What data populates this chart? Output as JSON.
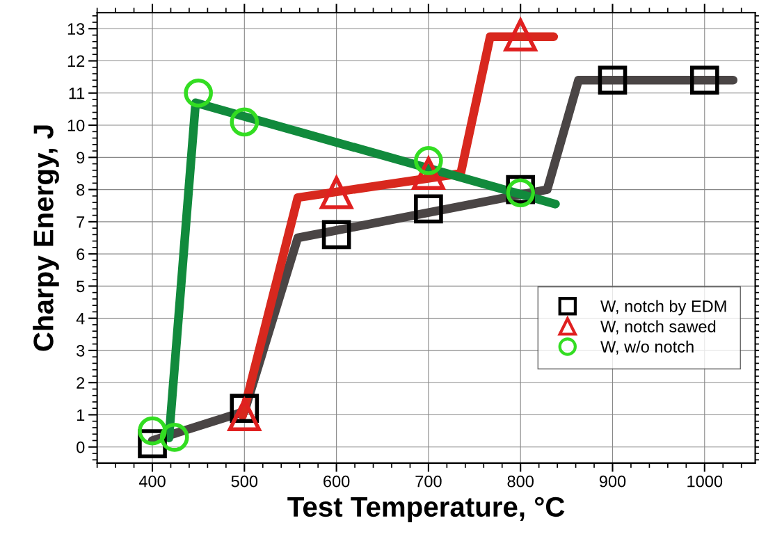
{
  "chart_data": {
    "type": "scatter",
    "xlabel": "Test Temperature, °C",
    "ylabel": "Charpy Energy, J",
    "xlim": [
      340,
      1055
    ],
    "ylim": [
      -0.5,
      13.5
    ],
    "xticks": [
      400,
      500,
      600,
      700,
      800,
      900,
      1000
    ],
    "yticks": [
      0,
      1,
      2,
      3,
      4,
      5,
      6,
      7,
      8,
      9,
      10,
      11,
      12,
      13
    ],
    "grid": true,
    "legend": "center right",
    "series": [
      {
        "type": "line",
        "color": "#4a4545",
        "line_style": "solid",
        "marker": "none",
        "x": [
          400,
          500,
          558,
          829,
          863,
          1031
        ],
        "values": [
          0.2,
          1.1,
          6.5,
          8.0,
          11.4,
          11.4
        ]
      },
      {
        "type": "line",
        "color": "#d8281e",
        "line_style": "solid",
        "marker": "none",
        "x": [
          498,
          558,
          735,
          767,
          836
        ],
        "values": [
          0.97,
          7.75,
          8.5,
          12.75,
          12.75
        ]
      },
      {
        "type": "line",
        "color": "#118a3c",
        "line_style": "solid",
        "marker": "none",
        "x": [
          418,
          447,
          838
        ],
        "values": [
          0.28,
          10.7,
          7.55
        ]
      },
      {
        "name": "W, notch by EDM",
        "color": "#000000",
        "marker": "square",
        "x": [
          400,
          500,
          600,
          700,
          800,
          900,
          1000
        ],
        "values": [
          0.1,
          1.2,
          6.6,
          7.4,
          8.0,
          11.4,
          11.4
        ]
      },
      {
        "name": "W, notch sawed",
        "color": "#e02020",
        "marker": "triangle",
        "x": [
          500,
          600,
          700,
          800
        ],
        "values": [
          1.0,
          7.9,
          8.5,
          12.8
        ]
      },
      {
        "name": "W, w/o notch",
        "color": "#33dd22",
        "marker": "circle",
        "x": [
          400,
          424,
          450,
          500,
          700,
          800
        ],
        "values": [
          0.5,
          0.3,
          11.0,
          10.1,
          8.9,
          7.9
        ]
      }
    ]
  }
}
